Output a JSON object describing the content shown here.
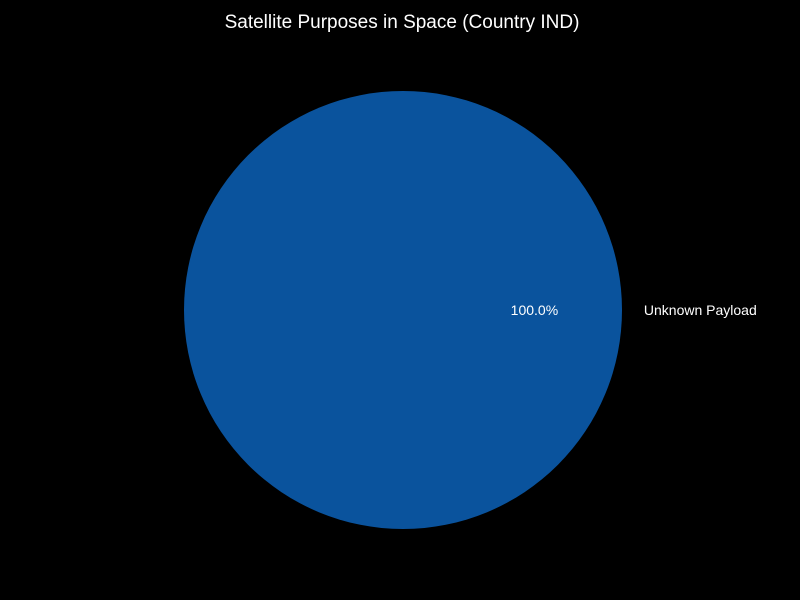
{
  "chart_data": {
    "type": "pie",
    "title": "Satellite Purposes in Space (Country IND)",
    "labels": [
      "Unknown Payload"
    ],
    "values": [
      100.0
    ],
    "percent_labels": [
      "100.0%"
    ],
    "colors": [
      "#0a539d"
    ],
    "background": "#000000",
    "text_color": "#ffffff",
    "legend": "none",
    "start_angle_deg": 180
  }
}
